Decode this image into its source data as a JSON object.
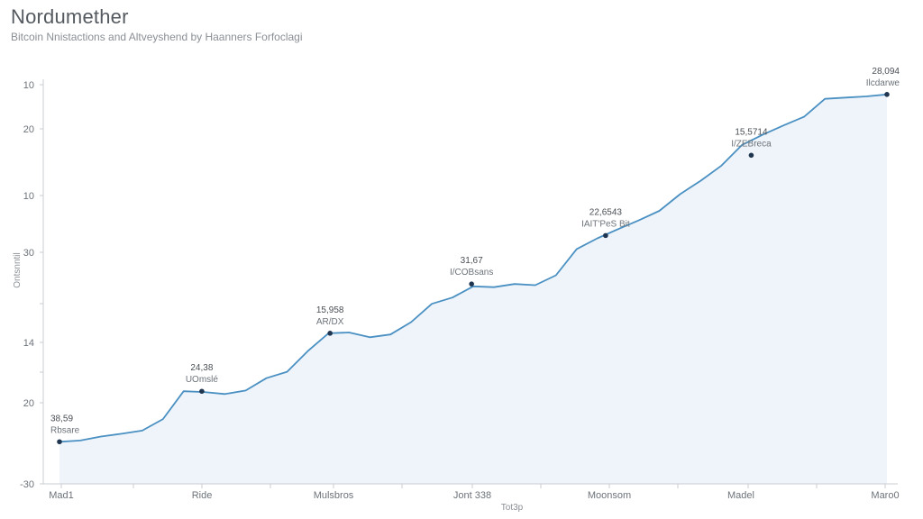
{
  "chart_data": {
    "type": "area",
    "title": "Nordumether",
    "subtitle": "Bitcoin Nnistactions and Altveyshend by Haanners Forfoclagi",
    "xlabel": "Tot3p",
    "ylabel": "Ontsnntil",
    "y_tick_labels": [
      "10",
      "20",
      "10",
      "30",
      "",
      "14",
      "",
      "20",
      "-30"
    ],
    "x_tick_labels": [
      "Mad1",
      "Ride",
      "Mulsbros",
      "Jont 338",
      "Moonsom",
      "Madel",
      "Maro0"
    ],
    "x": [
      0,
      2.5,
      5,
      7.5,
      10,
      12.5,
      15,
      17.5,
      20,
      22.5,
      25,
      27.5,
      30,
      32.5,
      35,
      37.5,
      40,
      42.5,
      45,
      47.5,
      50,
      52.5,
      55,
      57.5,
      60,
      62.5,
      65,
      67.5,
      70,
      72.5,
      75,
      77.5,
      80,
      82.5,
      85,
      87.5,
      90,
      92.5,
      95,
      97.5,
      100
    ],
    "y": [
      10.6,
      10.9,
      11.9,
      12.6,
      13.4,
      16.3,
      23.3,
      23.1,
      22.6,
      23.5,
      26.6,
      28.2,
      33.4,
      37.9,
      38.1,
      36.9,
      37.6,
      40.7,
      45.3,
      46.9,
      49.7,
      49.5,
      50.3,
      50.0,
      52.5,
      59.1,
      61.8,
      64.1,
      66.3,
      68.7,
      72.9,
      76.3,
      80.1,
      85.3,
      87.9,
      90.2,
      92.4,
      96.9,
      97.2,
      97.5,
      98.0
    ],
    "ylim": [
      0,
      100
    ],
    "xlim": [
      0,
      100
    ],
    "grid": false,
    "line_color": "#4a90c2",
    "fill_color": "#eef4fa",
    "annotations": [
      {
        "x": 0,
        "y": 10.6,
        "value": "38,59",
        "label": "Rbsare"
      },
      {
        "x": 17.2,
        "y": 23.3,
        "value": "24,38",
        "label": "UOmslé"
      },
      {
        "x": 32.7,
        "y": 37.9,
        "value": "15,958",
        "label": "AR/DX"
      },
      {
        "x": 49.8,
        "y": 50.3,
        "value": "31,67",
        "label": "I/COBsans"
      },
      {
        "x": 66.0,
        "y": 62.5,
        "value": "22,6543",
        "label": "IAIT'PeS Bit"
      },
      {
        "x": 83.6,
        "y": 82.7,
        "value": "15,5714",
        "label": "I/ZEBreca"
      },
      {
        "x": 100,
        "y": 98.0,
        "value": "28,094",
        "label": "Ilcdarwe"
      }
    ]
  }
}
